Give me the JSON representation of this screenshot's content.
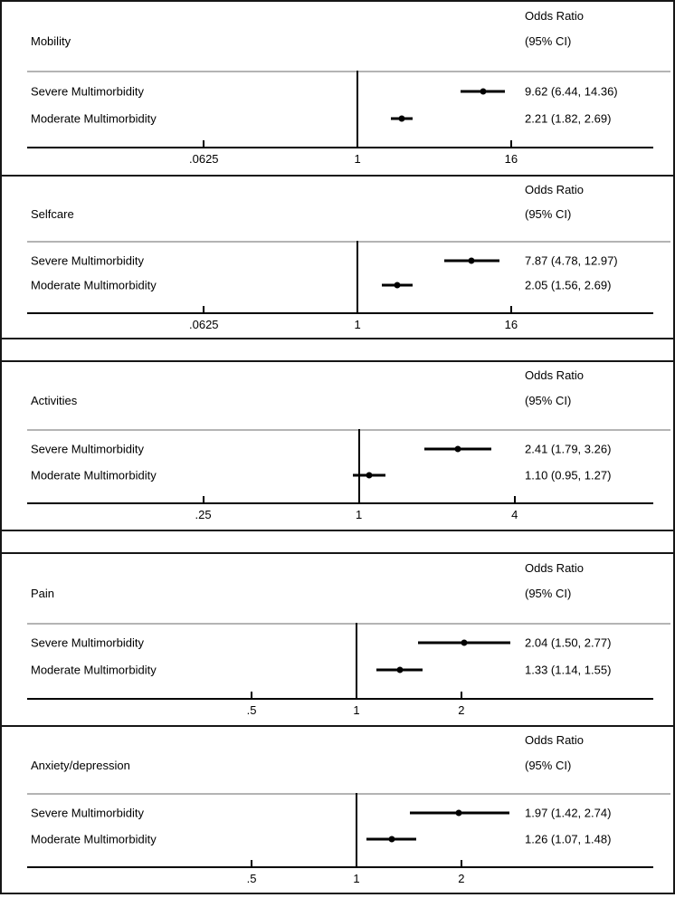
{
  "chart_data": [
    {
      "type": "forest",
      "panel": "Mobility",
      "header_line1": "Odds Ratio",
      "header_line2": "(95% CI)",
      "x_scale": "log2",
      "ref_value": 1,
      "tick_labels": [
        ".0625",
        "1",
        "16"
      ],
      "tick_values": [
        0.0625,
        1,
        16
      ],
      "xlim_log2": [
        -8.6,
        7.7
      ],
      "rows": [
        {
          "label": "Severe Multimorbidity",
          "or": 9.62,
          "ci_low": 6.44,
          "ci_high": 14.36,
          "display": "9.62 (6.44, 14.36)"
        },
        {
          "label": "Moderate Multimorbidity",
          "or": 2.21,
          "ci_low": 1.82,
          "ci_high": 2.69,
          "display": "2.21 (1.82, 2.69)"
        }
      ]
    },
    {
      "type": "forest",
      "panel": "Selfcare",
      "header_line1": "Odds Ratio",
      "header_line2": "(95% CI)",
      "x_scale": "log2",
      "ref_value": 1,
      "tick_labels": [
        ".0625",
        "1",
        "16"
      ],
      "tick_values": [
        0.0625,
        1,
        16
      ],
      "xlim_log2": [
        -8.6,
        7.7
      ],
      "rows": [
        {
          "label": "Severe Multimorbidity",
          "or": 7.87,
          "ci_low": 4.78,
          "ci_high": 12.97,
          "display": "7.87 (4.78, 12.97)"
        },
        {
          "label": "Moderate Multimorbidity",
          "or": 2.05,
          "ci_low": 1.56,
          "ci_high": 2.69,
          "display": "2.05 (1.56, 2.69)"
        }
      ]
    },
    {
      "type": "forest",
      "panel": "Activities",
      "header_line1": "Odds Ratio",
      "header_line2": "(95% CI)",
      "x_scale": "log2",
      "ref_value": 1,
      "tick_labels": [
        ".25",
        "1",
        "4"
      ],
      "tick_values": [
        0.25,
        1,
        4
      ],
      "xlim_log2": [
        -4.26,
        3.78
      ],
      "rows": [
        {
          "label": "Severe Multimorbidity",
          "or": 2.41,
          "ci_low": 1.79,
          "ci_high": 3.26,
          "display": "2.41 (1.79, 3.26)"
        },
        {
          "label": "Moderate Multimorbidity",
          "or": 1.1,
          "ci_low": 0.95,
          "ci_high": 1.27,
          "display": "1.10 (0.95, 1.27)"
        }
      ]
    },
    {
      "type": "forest",
      "panel": "Pain",
      "header_line1": "Odds Ratio",
      "header_line2": "(95% CI)",
      "x_scale": "log2",
      "ref_value": 1,
      "tick_labels": [
        ".5",
        "1",
        "2"
      ],
      "tick_values": [
        0.5,
        1,
        2
      ],
      "xlim_log2": [
        -3.14,
        2.83
      ],
      "rows": [
        {
          "label": "Severe Multimorbidity",
          "or": 2.04,
          "ci_low": 1.5,
          "ci_high": 2.77,
          "display": "2.04 (1.50, 2.77)"
        },
        {
          "label": "Moderate Multimorbidity",
          "or": 1.33,
          "ci_low": 1.14,
          "ci_high": 1.55,
          "display": "1.33 (1.14, 1.55)"
        }
      ]
    },
    {
      "type": "forest",
      "panel": "Anxiety/depression",
      "header_line1": "Odds Ratio",
      "header_line2": "(95% CI)",
      "x_scale": "log2",
      "ref_value": 1,
      "tick_labels": [
        ".5",
        "1",
        "2"
      ],
      "tick_values": [
        0.5,
        1,
        2
      ],
      "xlim_log2": [
        -3.14,
        2.83
      ],
      "rows": [
        {
          "label": "Severe Multimorbidity",
          "or": 1.97,
          "ci_low": 1.42,
          "ci_high": 2.74,
          "display": "1.97 (1.42, 2.74)"
        },
        {
          "label": "Moderate Multimorbidity",
          "or": 1.26,
          "ci_low": 1.07,
          "ci_high": 1.48,
          "display": "1.26 (1.07, 1.48)"
        }
      ]
    }
  ],
  "colors": {
    "border": "#161616",
    "separator": "#b4b4b4",
    "ink": "#000000",
    "background": "#ffffff"
  }
}
